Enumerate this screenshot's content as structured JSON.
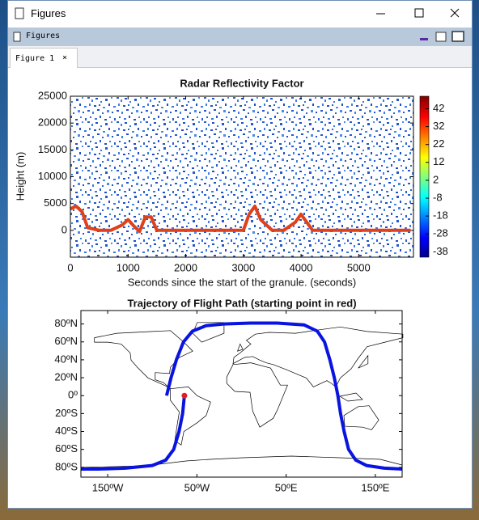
{
  "window": {
    "title": "Figures",
    "panel_title": "Figures",
    "tab": "Figure 1",
    "tab_close": "×"
  },
  "chart_data": [
    {
      "type": "heatmap",
      "title": "Radar Reflectivity Factor",
      "xlabel": "Seconds since the start of the granule. (seconds)",
      "ylabel": "Height (m)",
      "xlim": [
        0,
        5950
      ],
      "ylim": [
        -5000,
        25000
      ],
      "xticks": [
        0,
        1000,
        2000,
        3000,
        4000,
        5000
      ],
      "yticks": [
        0,
        5000,
        10000,
        15000,
        20000,
        25000
      ],
      "colorbar": {
        "clim": [
          -41,
          49
        ],
        "ticks": [
          -38,
          -28,
          -18,
          -8,
          2,
          12,
          22,
          32,
          42
        ]
      },
      "surface_echo": {
        "color": "#e0401a",
        "x": [
          0,
          100,
          200,
          300,
          500,
          700,
          900,
          1000,
          1100,
          1200,
          1300,
          1400,
          1500,
          2000,
          2500,
          3000,
          3100,
          3200,
          3300,
          3500,
          3700,
          3900,
          4000,
          4100,
          4200,
          4500,
          5000,
          5500,
          5900
        ],
        "y": [
          4000,
          4500,
          3500,
          500,
          0,
          0,
          1000,
          2000,
          800,
          -200,
          2500,
          2500,
          0,
          0,
          0,
          0,
          3000,
          4500,
          2000,
          0,
          0,
          1500,
          3000,
          1500,
          0,
          0,
          0,
          0,
          0
        ]
      }
    },
    {
      "type": "map",
      "title": "Trajectory of Flight Path (starting point in red)",
      "xlim": [
        -180,
        180
      ],
      "ylim": [
        -91,
        95
      ],
      "xticks": [
        {
          "value": -150,
          "label": "150ºW"
        },
        {
          "value": -50,
          "label": "50ºW"
        },
        {
          "value": 50,
          "label": "50ºE"
        },
        {
          "value": 150,
          "label": "150ºE"
        }
      ],
      "yticks": [
        {
          "value": 80,
          "label": "80ºN"
        },
        {
          "value": 60,
          "label": "60ºN"
        },
        {
          "value": 40,
          "label": "40ºN"
        },
        {
          "value": 20,
          "label": "20ºN"
        },
        {
          "value": 0,
          "label": "0º"
        },
        {
          "value": -20,
          "label": "20ºS"
        },
        {
          "value": -40,
          "label": "40ºS"
        },
        {
          "value": -60,
          "label": "60ºS"
        },
        {
          "value": -80,
          "label": "80ºS"
        }
      ],
      "color": "#0a14e0",
      "x": [
        -64,
        -66,
        -70,
        -76,
        -85,
        -100,
        -130,
        -160,
        -180,
        null,
        180,
        160,
        140,
        128,
        120,
        115,
        111,
        108,
        104,
        99,
        93,
        85,
        70,
        40,
        10,
        -20,
        -40,
        -55,
        -65,
        -73,
        -79,
        -84
      ],
      "y": [
        0,
        -20,
        -40,
        -60,
        -72,
        -78,
        -81,
        -82,
        -82,
        null,
        -82,
        -81,
        -78,
        -72,
        -60,
        -40,
        -20,
        0,
        20,
        40,
        60,
        72,
        79,
        81,
        81,
        80,
        78,
        72,
        60,
        40,
        20,
        0
      ],
      "start": {
        "x": -64,
        "y": 0,
        "color": "#e02020"
      }
    }
  ]
}
